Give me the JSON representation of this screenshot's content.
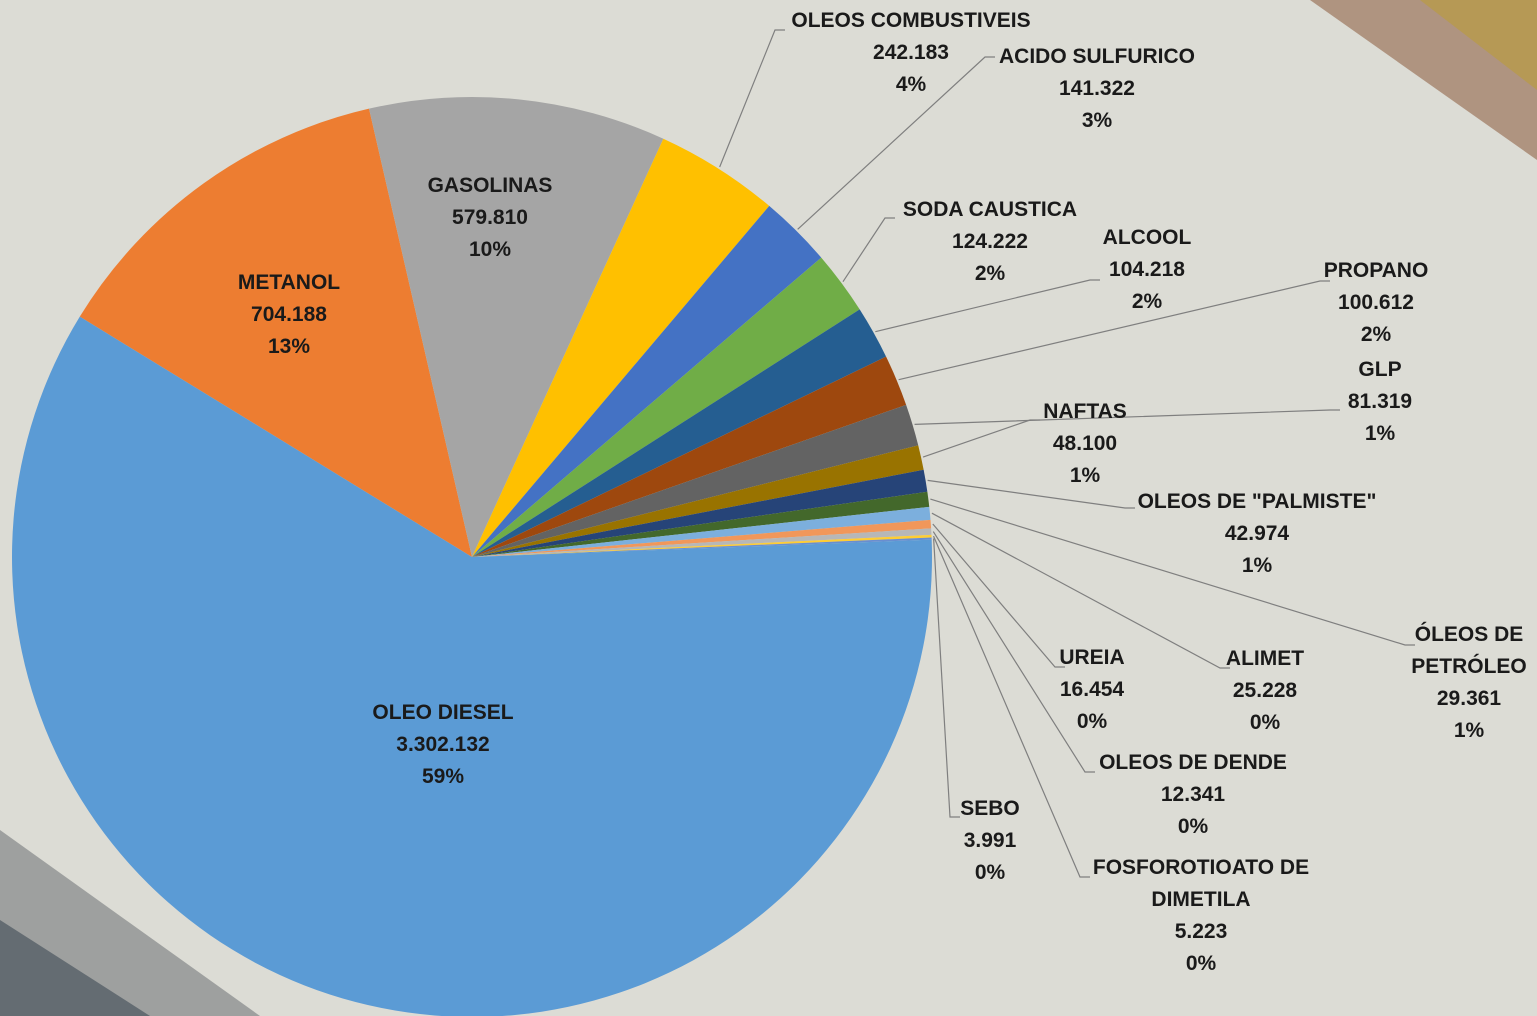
{
  "chart_data": {
    "type": "pie",
    "categories": [
      "METANOL",
      "GASOLINAS",
      "OLEOS COMBUSTIVEIS",
      "ACIDO SULFURICO",
      "SODA CAUSTICA",
      "ALCOOL",
      "PROPANO",
      "GLP",
      "NAFTAS",
      "OLEOS DE \"PALMISTE\"",
      "ÓLEOS DE PETRÓLEO",
      "ALIMET",
      "UREIA",
      "OLEOS DE DENDE",
      "FOSFOROTIOATO DE DIMETILA",
      "SEBO",
      "OLEO DIESEL"
    ],
    "values": [
      704188,
      579810,
      242183,
      141322,
      124222,
      104218,
      100612,
      81319,
      48100,
      42974,
      29361,
      25228,
      16454,
      12341,
      5223,
      3991,
      3302132
    ],
    "value_labels": [
      "704.188",
      "579.810",
      "242.183",
      "141.322",
      "124.222",
      "104.218",
      "100.612",
      "81.319",
      "48.100",
      "42.974",
      "29.361",
      "25.228",
      "16.454",
      "12.341",
      "5.223",
      "3.991",
      "3.302.132"
    ],
    "percent_labels": [
      "13%",
      "10%",
      "4%",
      "3%",
      "2%",
      "2%",
      "2%",
      "1%",
      "1%",
      "1%",
      "1%",
      "0%",
      "0%",
      "0%",
      "0%",
      "0%",
      "59%"
    ],
    "colors": [
      "#ed7d31",
      "#a5a5a5",
      "#ffc000",
      "#4472c4",
      "#70ad47",
      "#255e91",
      "#9e480e",
      "#636363",
      "#997300",
      "#264478",
      "#43682b",
      "#7cafdd",
      "#f1975a",
      "#b7b7b7",
      "#ffcd33",
      "#698ed0",
      "#5b9bd5"
    ]
  }
}
